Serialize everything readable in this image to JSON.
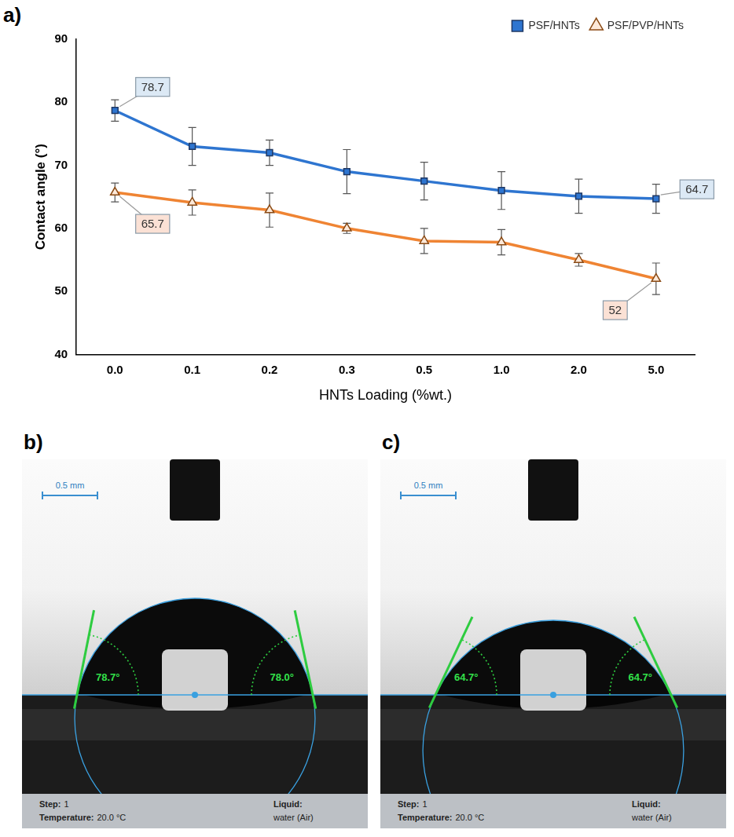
{
  "chart_data": {
    "type": "line",
    "panel_label": "a)",
    "x_label": "HNTs Loading (%wt.)",
    "y_label": "Contact angle (°)",
    "categories": [
      "0.0",
      "0.1",
      "0.2",
      "0.3",
      "0.5",
      "1.0",
      "2.0",
      "5.0"
    ],
    "series": [
      {
        "name": "PSF/HNTs",
        "color": "#2e75d0",
        "marker": "square",
        "line_style": "solid",
        "values": [
          78.7,
          73,
          72,
          69,
          67.5,
          66,
          65.1,
          64.7
        ],
        "errors": [
          1.7,
          3,
          2,
          3.5,
          3,
          3,
          2.7,
          2.3
        ]
      },
      {
        "name": "PSF/PVP/HNTs",
        "color": "#ef8433",
        "marker": "triangle",
        "line_style": "solid",
        "values": [
          65.7,
          64.1,
          62.9,
          60,
          58,
          57.8,
          55,
          52
        ],
        "errors": [
          1.5,
          2,
          2.7,
          0.8,
          2,
          2,
          1,
          2.5
        ]
      }
    ],
    "annotations": [
      {
        "text": "78.7",
        "series": "PSF/HNTs",
        "category": "0.0"
      },
      {
        "text": "64.7",
        "series": "PSF/HNTs",
        "category": "5.0"
      },
      {
        "text": "65.7",
        "series": "PSF/PVP/HNTs",
        "category": "0.0"
      },
      {
        "text": "52",
        "series": "PSF/PVP/HNTs",
        "category": "5.0"
      }
    ],
    "ylim": [
      40,
      90
    ],
    "yticks": [
      40,
      50,
      60,
      70,
      80,
      90
    ],
    "grid": false,
    "legend": "upper right"
  },
  "photos": [
    {
      "letter": "b)",
      "scale_bar": "0.5 mm",
      "contact_angles": [
        {
          "value": 78.7,
          "label": "78.7°"
        },
        {
          "value": 78.0,
          "label": "78.0°"
        }
      ],
      "footer": [
        {
          "label": "Step:",
          "value": "1"
        },
        {
          "label": "Temperature:",
          "value": "20.0 °C"
        },
        {
          "label": "Liquid:",
          "value": "water (Air)"
        }
      ]
    },
    {
      "letter": "c)",
      "scale_bar": "0.5 mm",
      "contact_angles": [
        {
          "value": 64.7,
          "label": "64.7°"
        },
        {
          "value": 64.7,
          "label": "64.7°"
        }
      ],
      "footer": [
        {
          "label": "Step:",
          "value": "1"
        },
        {
          "label": "Temperature:",
          "value": "20.0 °C"
        },
        {
          "label": "Liquid:",
          "value": "water (Air)"
        }
      ]
    }
  ]
}
